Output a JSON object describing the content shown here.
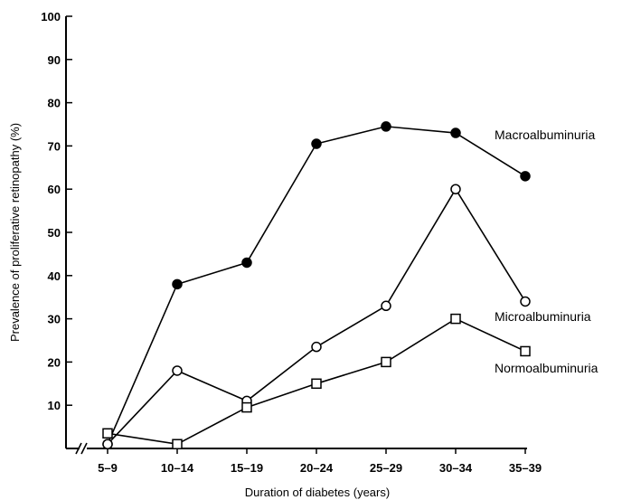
{
  "chart_data": {
    "type": "line",
    "title": "",
    "xlabel": "Duration of diabetes (years)",
    "ylabel": "Prevalence of proliferative retinopathy (%)",
    "categories": [
      "5–9",
      "10–14",
      "15–19",
      "20–24",
      "25–29",
      "30–34",
      "35–39"
    ],
    "ylim": [
      0,
      100
    ],
    "yticks": [
      "10",
      "20",
      "30",
      "40",
      "50",
      "60",
      "70",
      "80",
      "90",
      "100"
    ],
    "axis_break": true,
    "grid": false,
    "legend": "inline labels at line ends",
    "series": [
      {
        "name": "Macroalbuminuria",
        "marker": "filled-circle",
        "color": "#000000",
        "values": [
          1,
          38,
          43,
          70.5,
          74.5,
          73,
          63
        ]
      },
      {
        "name": "Microalbuminuria",
        "marker": "open-circle",
        "color": "#000000",
        "values": [
          1,
          18,
          11,
          23.5,
          33,
          60,
          34
        ]
      },
      {
        "name": "Normoalbuminuria",
        "marker": "open-square",
        "color": "#000000",
        "values": [
          3.5,
          1,
          9.5,
          15,
          20,
          30,
          22.5
        ]
      }
    ]
  }
}
